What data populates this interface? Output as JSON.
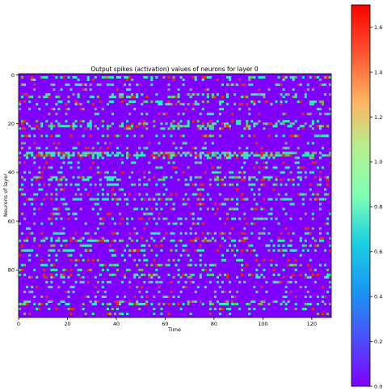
{
  "chart_data": {
    "type": "heatmap",
    "title": "Output spikes (activation) values of neurons for layer 0",
    "xlabel": "Time",
    "ylabel": "Neurons of layer",
    "n_timesteps": 128,
    "n_neurons": 100,
    "xlim": [
      0,
      128
    ],
    "ylim": [
      100,
      0
    ],
    "x_ticks": [
      0,
      20,
      40,
      60,
      80,
      100,
      120
    ],
    "y_ticks": [
      0,
      20,
      40,
      60,
      80
    ],
    "colormap": "rainbow",
    "colorbar": {
      "range": [
        0.0,
        1.7
      ],
      "ticks": [
        "0.0",
        "0.2",
        "0.4",
        "0.6",
        "0.8",
        "1.0",
        "1.2",
        "1.4",
        "1.6"
      ]
    },
    "background_value": 0.0,
    "active_rows": [
      {
        "neuron": 1,
        "density": 0.45
      },
      {
        "neuron": 2,
        "density": 0.2
      },
      {
        "neuron": 4,
        "density": 0.3
      },
      {
        "neuron": 6,
        "density": 0.2
      },
      {
        "neuron": 8,
        "density": 0.25
      },
      {
        "neuron": 9,
        "density": 0.35
      },
      {
        "neuron": 11,
        "density": 0.3
      },
      {
        "neuron": 12,
        "density": 0.25
      },
      {
        "neuron": 14,
        "density": 0.2
      },
      {
        "neuron": 16,
        "density": 0.2
      },
      {
        "neuron": 19,
        "density": 0.25
      },
      {
        "neuron": 20,
        "density": 0.35
      },
      {
        "neuron": 21,
        "density": 0.45
      },
      {
        "neuron": 22,
        "density": 0.3
      },
      {
        "neuron": 25,
        "density": 0.35
      },
      {
        "neuron": 28,
        "density": 0.2
      },
      {
        "neuron": 30,
        "density": 0.25
      },
      {
        "neuron": 32,
        "density": 0.6
      },
      {
        "neuron": 33,
        "density": 0.7
      },
      {
        "neuron": 34,
        "density": 0.3
      },
      {
        "neuron": 36,
        "density": 0.2
      },
      {
        "neuron": 38,
        "density": 0.25
      },
      {
        "neuron": 40,
        "density": 0.2
      },
      {
        "neuron": 42,
        "density": 0.5
      },
      {
        "neuron": 43,
        "density": 0.3
      },
      {
        "neuron": 45,
        "density": 0.35
      },
      {
        "neuron": 47,
        "density": 0.2
      },
      {
        "neuron": 49,
        "density": 0.35
      },
      {
        "neuron": 51,
        "density": 0.55
      },
      {
        "neuron": 53,
        "density": 0.2
      },
      {
        "neuron": 55,
        "density": 0.25
      },
      {
        "neuron": 57,
        "density": 0.2
      },
      {
        "neuron": 59,
        "density": 0.3
      },
      {
        "neuron": 61,
        "density": 0.25
      },
      {
        "neuron": 63,
        "density": 0.2
      },
      {
        "neuron": 65,
        "density": 0.3
      },
      {
        "neuron": 67,
        "density": 0.25
      },
      {
        "neuron": 68,
        "density": 0.45
      },
      {
        "neuron": 70,
        "density": 0.25
      },
      {
        "neuron": 72,
        "density": 0.5
      },
      {
        "neuron": 74,
        "density": 0.2
      },
      {
        "neuron": 76,
        "density": 0.25
      },
      {
        "neuron": 78,
        "density": 0.3
      },
      {
        "neuron": 80,
        "density": 0.35
      },
      {
        "neuron": 82,
        "density": 0.45
      },
      {
        "neuron": 83,
        "density": 0.3
      },
      {
        "neuron": 85,
        "density": 0.3
      },
      {
        "neuron": 87,
        "density": 0.25
      },
      {
        "neuron": 89,
        "density": 0.2
      },
      {
        "neuron": 91,
        "density": 0.25
      },
      {
        "neuron": 93,
        "density": 0.2
      },
      {
        "neuron": 94,
        "density": 0.45
      },
      {
        "neuron": 96,
        "density": 0.2
      },
      {
        "neuron": 98,
        "density": 0.15
      }
    ],
    "spike_values": [
      0.6,
      0.8,
      1.0,
      1.3,
      1.6
    ]
  }
}
